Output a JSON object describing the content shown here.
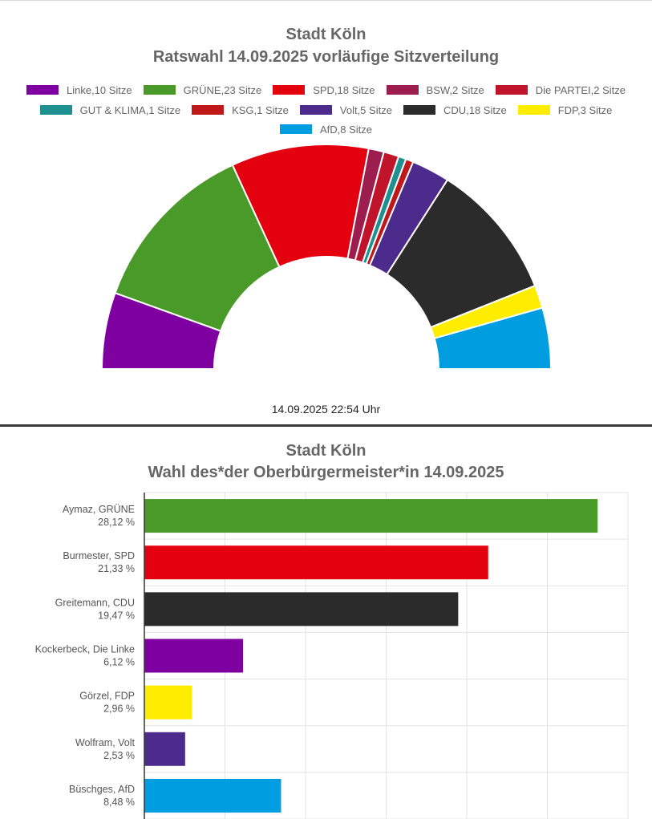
{
  "chart_data": [
    {
      "type": "pie",
      "subtype": "semicircle",
      "title": "Stadt Köln",
      "subtitle": "Ratswahl 14.09.2025 vorläufige Sitzverteilung",
      "legend_position": "top",
      "categories": [
        "Linke",
        "GRÜNE",
        "SPD",
        "BSW",
        "Die PARTEI",
        "GUT & KLIMA",
        "KSG",
        "Volt",
        "CDU",
        "FDP",
        "AfD"
      ],
      "legend_labels": [
        "Linke,10 Sitze",
        "GRÜNE,23 Sitze",
        "SPD,18 Sitze",
        "BSW,2 Sitze",
        "Die PARTEI,2 Sitze",
        "GUT & KLIMA,1 Sitze",
        "KSG,1 Sitze",
        "Volt,5 Sitze",
        "CDU,18 Sitze",
        "FDP,3 Sitze",
        "AfD,8 Sitze"
      ],
      "values": [
        10,
        23,
        18,
        2,
        2,
        1,
        1,
        5,
        18,
        3,
        8
      ],
      "colors": [
        "#7f00a0",
        "#4a9a2a",
        "#e3000f",
        "#9c1d4e",
        "#c0142a",
        "#1f9090",
        "#c01818",
        "#4d2b8c",
        "#2b2b2b",
        "#ffed00",
        "#009ee0"
      ],
      "footer": "14.09.2025 22:54 Uhr"
    },
    {
      "type": "bar",
      "orientation": "horizontal",
      "title": "Stadt Köln",
      "subtitle": "Wahl des*der Oberbürgermeister*in 14.09.2025",
      "grid": true,
      "xlim": [
        0,
        30
      ],
      "categories": [
        "Aymaz, GRÜNE",
        "Burmester, SPD",
        "Greitemann, CDU",
        "Kockerbeck, Die Linke",
        "Görzel, FDP",
        "Wolfram, Volt",
        "Büschges, AfD"
      ],
      "value_labels": [
        "28,12 %",
        "21,33 %",
        "19,47 %",
        "6,12 %",
        "2,96 %",
        "2,53 %",
        "8,48 %"
      ],
      "values": [
        28.12,
        21.33,
        19.47,
        6.12,
        2.96,
        2.53,
        8.48
      ],
      "colors": [
        "#4a9a2a",
        "#e3000f",
        "#2b2b2b",
        "#7f00a0",
        "#ffed00",
        "#4d2b8c",
        "#009ee0"
      ]
    }
  ]
}
